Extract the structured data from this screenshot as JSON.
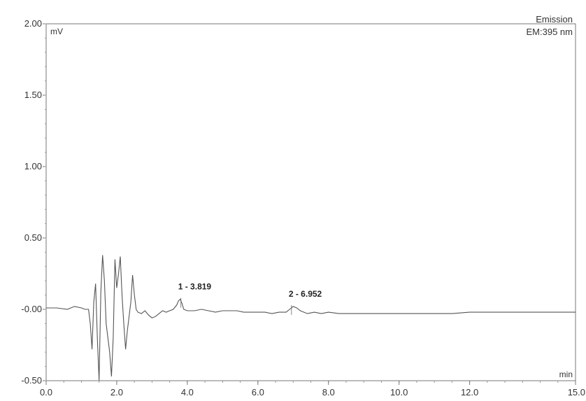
{
  "chart_data": {
    "type": "line",
    "title": "",
    "header_lines": [
      "Emission",
      "EM:395 nm"
    ],
    "ylabel": "mV",
    "xlabel": "min",
    "xlim": [
      0.0,
      15.0
    ],
    "ylim": [
      -0.5,
      2.0
    ],
    "x_ticks": [
      "0.0",
      "2.0",
      "4.0",
      "6.0",
      "8.0",
      "10.0",
      "12.0",
      "15.0"
    ],
    "x_tick_values": [
      0,
      2,
      4,
      6,
      8,
      10,
      12,
      15
    ],
    "y_ticks": [
      "-0.50",
      "-0.00",
      "0.50",
      "1.00",
      "1.50",
      "2.00"
    ],
    "y_tick_values": [
      -0.5,
      0,
      0.5,
      1.0,
      1.5,
      2.0
    ],
    "grid": false,
    "line_color": "#555555",
    "series": [
      {
        "x": [
          0.0,
          0.3,
          0.6,
          0.8,
          1.0,
          1.1,
          1.2,
          1.25,
          1.3,
          1.35,
          1.4,
          1.45,
          1.5,
          1.55,
          1.6,
          1.65,
          1.7,
          1.75,
          1.8,
          1.85,
          1.9,
          1.95,
          2.0,
          2.05,
          2.1,
          2.15,
          2.2,
          2.25,
          2.3,
          2.35,
          2.4,
          2.45,
          2.5,
          2.55,
          2.6,
          2.7,
          2.8,
          2.9,
          3.0,
          3.1,
          3.2,
          3.3,
          3.4,
          3.5,
          3.6,
          3.7,
          3.75,
          3.8,
          3.85,
          3.9,
          4.0,
          4.2,
          4.4,
          4.6,
          4.8,
          5.0,
          5.2,
          5.4,
          5.6,
          5.8,
          6.0,
          6.2,
          6.4,
          6.6,
          6.8,
          6.9,
          6.95,
          7.0,
          7.1,
          7.2,
          7.4,
          7.6,
          7.8,
          8.0,
          8.3,
          8.6,
          9.0,
          9.5,
          10.0,
          10.5,
          11.0,
          11.5,
          12.0,
          12.5,
          13.0,
          13.5,
          14.0,
          14.5,
          15.0
        ],
        "y": [
          0.01,
          0.01,
          0.0,
          0.02,
          0.01,
          0.0,
          0.0,
          -0.1,
          -0.28,
          0.05,
          0.18,
          -0.2,
          -0.5,
          0.12,
          0.38,
          0.2,
          -0.1,
          -0.2,
          -0.3,
          -0.47,
          -0.2,
          0.35,
          0.15,
          0.25,
          0.37,
          0.1,
          -0.1,
          -0.28,
          -0.15,
          -0.05,
          0.05,
          0.24,
          0.1,
          0.0,
          -0.02,
          -0.03,
          -0.01,
          -0.04,
          -0.06,
          -0.05,
          -0.03,
          -0.01,
          -0.02,
          -0.01,
          0.0,
          0.03,
          0.06,
          0.07,
          0.04,
          0.0,
          -0.01,
          -0.01,
          0.0,
          -0.01,
          -0.02,
          -0.01,
          -0.01,
          -0.01,
          -0.02,
          -0.02,
          -0.02,
          -0.02,
          -0.03,
          -0.02,
          -0.02,
          0.0,
          0.01,
          0.02,
          0.01,
          -0.01,
          -0.03,
          -0.02,
          -0.03,
          -0.02,
          -0.03,
          -0.03,
          -0.03,
          -0.03,
          -0.03,
          -0.03,
          -0.03,
          -0.03,
          -0.02,
          -0.02,
          -0.02,
          -0.02,
          -0.02,
          -0.02,
          -0.02
        ]
      }
    ],
    "annotations": [
      {
        "text": "1 - 3.819",
        "x": 3.819,
        "y": 0.07
      },
      {
        "text": "2 - 6.952",
        "x": 6.952,
        "y": 0.02
      }
    ]
  }
}
